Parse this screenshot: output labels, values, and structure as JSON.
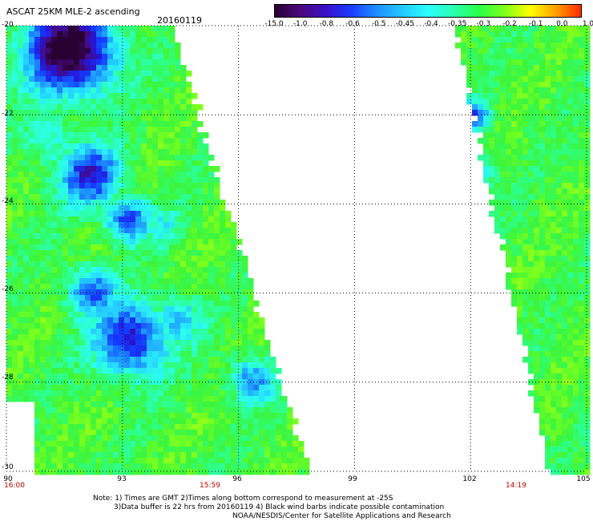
{
  "header": {
    "title": "ASCAT 25KM MLE-2 ascending",
    "date": "20160119"
  },
  "colorbar": {
    "labels": [
      "-15.0",
      "-1.0",
      "-0.8",
      "-0.6",
      "-0.5",
      "-0.45",
      "-0.4",
      "-0.35",
      "-0.3",
      "-0.2",
      "-0.1",
      "0.0",
      "1.0"
    ],
    "colors": [
      "#2a0033",
      "#4b0a7a",
      "#3a10c8",
      "#1a3cff",
      "#1f8fff",
      "#25c8ff",
      "#2bffff",
      "#2bffb0",
      "#2bff4a",
      "#7dff1a",
      "#ffff00",
      "#ffa000",
      "#ff2a00"
    ]
  },
  "axes": {
    "y_labels": [
      "-20",
      "-22",
      "-24",
      "-26",
      "-28",
      "-30"
    ],
    "x_labels": [
      "90",
      "93",
      "96",
      "99",
      "102",
      "105"
    ]
  },
  "times": [
    "16:00",
    "15:59",
    "14:19"
  ],
  "notes": {
    "line1": "Note: 1) Times are GMT 2)Times along bottom correspond to measurement at -25S",
    "line2": "3)Data buffer is 22 hrs from 20160119 4) Black wind barbs indicate possible contamination",
    "line3": "NOAA/NESDIS/Center for Satellite Applications and Research"
  },
  "map_data": {
    "lon_range": [
      90,
      105
    ],
    "lat_range": [
      -30,
      -20
    ],
    "swath_left": {
      "top_right_lon": 94.2,
      "bottom_right_lon": 97.8,
      "left_lon": 90
    },
    "swath_right": {
      "top_left_lon": 101.5,
      "bottom_left_lon": 104.0,
      "right_lon": 105
    },
    "low_value_regions": [
      {
        "lon": 91.5,
        "lat": -20.6,
        "value": -0.9
      },
      {
        "lon": 92.3,
        "lat": -23.3,
        "value": -0.6
      },
      {
        "lon": 93.1,
        "lat": -24.3,
        "value": -0.6
      },
      {
        "lon": 92.3,
        "lat": -26.0,
        "value": -0.55
      },
      {
        "lon": 93.6,
        "lat": -27.3,
        "value": -0.65
      },
      {
        "lon": 96.1,
        "lat": -28.1,
        "value": -0.5
      },
      {
        "lon": 101.8,
        "lat": -22.0,
        "value": -0.6
      }
    ]
  }
}
